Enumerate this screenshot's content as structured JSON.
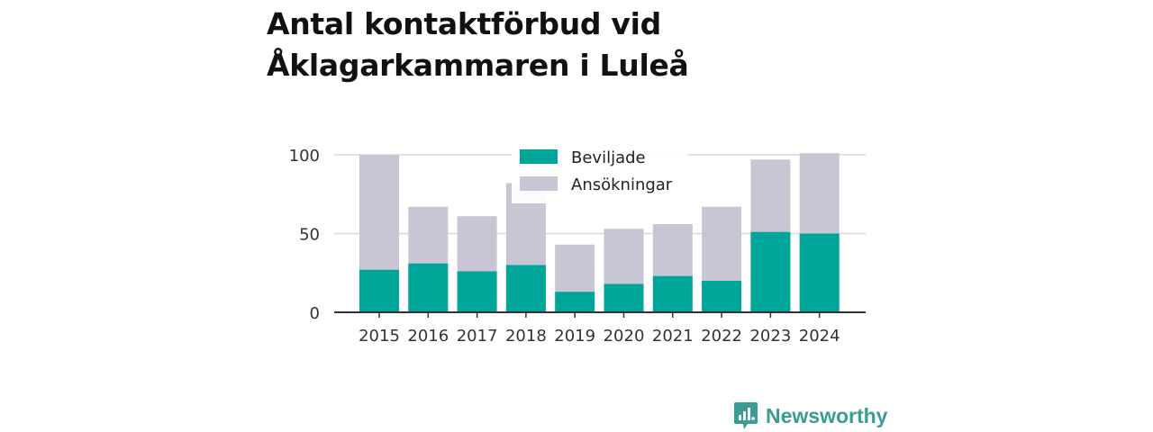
{
  "title_lines": [
    "Antal kontaktförbud vid",
    "Åklagarkammaren i Luleå"
  ],
  "brand": {
    "name": "Newsworthy",
    "icon": "newsworthy-logo-icon",
    "color": "#3a9c92"
  },
  "chart_data": {
    "type": "bar",
    "stacked": false,
    "overlapping": true,
    "title": "Antal kontaktförbud vid Åklagarkammaren i Luleå",
    "categories": [
      "2015",
      "2016",
      "2017",
      "2018",
      "2019",
      "2020",
      "2021",
      "2022",
      "2023",
      "2024"
    ],
    "series": [
      {
        "name": "Ansökningar",
        "color": "#c8c6d3",
        "values": [
          100,
          67,
          61,
          82,
          43,
          53,
          56,
          67,
          97,
          101
        ]
      },
      {
        "name": "Beviljade",
        "color": "#00a59a",
        "values": [
          27,
          31,
          26,
          30,
          13,
          18,
          23,
          20,
          51,
          50
        ]
      }
    ],
    "legend": {
      "position": "top-center",
      "items": [
        {
          "name": "Beviljade",
          "color": "#00a59a"
        },
        {
          "name": "Ansökningar",
          "color": "#c8c6d3"
        }
      ]
    },
    "ylim": [
      0,
      100
    ],
    "yticks": [
      0,
      50,
      100
    ],
    "grid": true,
    "xlabel": "",
    "ylabel": ""
  }
}
